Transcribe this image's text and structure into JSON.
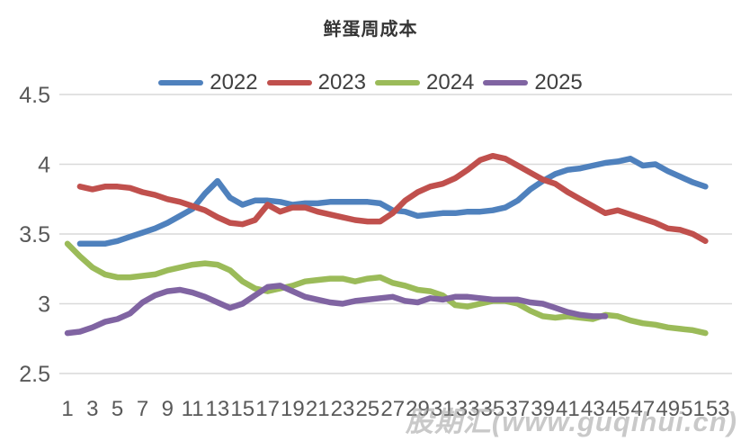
{
  "title": "鲜蛋周成本",
  "watermark": "股期汇(www.guqihui.cn)",
  "colors": {
    "background": "#ffffff",
    "grid": "#d9d9d9",
    "axis_text": "#595959",
    "title_text": "#363636",
    "legend_text": "#404040",
    "watermark_text": "#9e9e9e"
  },
  "legend": {
    "items": [
      {
        "label": "2022",
        "color": "#4F81BD"
      },
      {
        "label": "2023",
        "color": "#C0504D"
      },
      {
        "label": "2024",
        "color": "#9BBB59"
      },
      {
        "label": "2025",
        "color": "#8064A2"
      }
    ]
  },
  "chart_data": {
    "type": "line",
    "title": "鲜蛋周成本",
    "xlabel": "",
    "ylabel": "",
    "ylim": [
      2.5,
      4.5
    ],
    "xlim": [
      1,
      53
    ],
    "grid": "horizontal",
    "legend_position": "top",
    "y_ticks": [
      2.5,
      3,
      3.5,
      4,
      4.5
    ],
    "x_tick_labels": [
      1,
      3,
      5,
      7,
      9,
      11,
      13,
      15,
      17,
      19,
      21,
      23,
      25,
      27,
      29,
      31,
      33,
      35,
      37,
      39,
      41,
      43,
      45,
      47,
      49,
      51,
      53
    ],
    "x": [
      1,
      2,
      3,
      4,
      5,
      6,
      7,
      8,
      9,
      10,
      11,
      12,
      13,
      14,
      15,
      16,
      17,
      18,
      19,
      20,
      21,
      22,
      23,
      24,
      25,
      26,
      27,
      28,
      29,
      30,
      31,
      32,
      33,
      34,
      35,
      36,
      37,
      38,
      39,
      40,
      41,
      42,
      43,
      44,
      45,
      46,
      47,
      48,
      49,
      50,
      51,
      52,
      53
    ],
    "series": [
      {
        "name": "2022",
        "color": "#4F81BD",
        "values": [
          null,
          3.43,
          3.43,
          3.43,
          3.45,
          3.48,
          3.51,
          3.54,
          3.58,
          3.63,
          3.68,
          3.79,
          3.88,
          3.76,
          3.71,
          3.74,
          3.74,
          3.73,
          3.71,
          3.72,
          3.72,
          3.73,
          3.73,
          3.73,
          3.73,
          3.72,
          3.67,
          3.66,
          3.63,
          3.64,
          3.65,
          3.65,
          3.66,
          3.66,
          3.67,
          3.69,
          3.74,
          3.82,
          3.88,
          3.93,
          3.96,
          3.97,
          3.99,
          4.01,
          4.02,
          4.04,
          3.99,
          4.0,
          3.95,
          3.91,
          3.87,
          3.84,
          null
        ]
      },
      {
        "name": "2023",
        "color": "#C0504D",
        "values": [
          null,
          3.84,
          3.82,
          3.84,
          3.84,
          3.83,
          3.8,
          3.78,
          3.75,
          3.73,
          3.7,
          3.67,
          3.62,
          3.58,
          3.57,
          3.6,
          3.71,
          3.66,
          3.69,
          3.69,
          3.66,
          3.64,
          3.62,
          3.6,
          3.59,
          3.59,
          3.65,
          3.74,
          3.8,
          3.84,
          3.86,
          3.9,
          3.96,
          4.03,
          4.06,
          4.04,
          3.99,
          3.94,
          3.89,
          3.86,
          3.8,
          3.75,
          3.7,
          3.65,
          3.67,
          3.64,
          3.61,
          3.58,
          3.54,
          3.53,
          3.5,
          3.45,
          null
        ]
      },
      {
        "name": "2024",
        "color": "#9BBB59",
        "values": [
          3.43,
          3.34,
          3.26,
          3.21,
          3.19,
          3.19,
          3.2,
          3.21,
          3.24,
          3.26,
          3.28,
          3.29,
          3.28,
          3.24,
          3.16,
          3.11,
          3.09,
          3.11,
          3.13,
          3.16,
          3.17,
          3.18,
          3.18,
          3.16,
          3.18,
          3.19,
          3.15,
          3.13,
          3.1,
          3.09,
          3.06,
          2.99,
          2.98,
          3.0,
          3.02,
          3.02,
          3.0,
          2.95,
          2.91,
          2.9,
          2.91,
          2.9,
          2.89,
          2.92,
          2.91,
          2.88,
          2.86,
          2.85,
          2.83,
          2.82,
          2.81,
          2.79,
          null
        ]
      },
      {
        "name": "2025",
        "color": "#8064A2",
        "values": [
          2.79,
          2.8,
          2.83,
          2.87,
          2.89,
          2.93,
          3.01,
          3.06,
          3.09,
          3.1,
          3.08,
          3.05,
          3.01,
          2.97,
          3.0,
          3.06,
          3.12,
          3.13,
          3.09,
          3.05,
          3.03,
          3.01,
          3.0,
          3.02,
          3.03,
          3.04,
          3.05,
          3.02,
          3.01,
          3.04,
          3.03,
          3.05,
          3.05,
          3.04,
          3.03,
          3.03,
          3.03,
          3.01,
          3.0,
          2.97,
          2.94,
          2.92,
          2.91,
          2.91,
          null,
          null,
          null,
          null,
          null,
          null,
          null,
          null,
          null
        ]
      }
    ]
  }
}
